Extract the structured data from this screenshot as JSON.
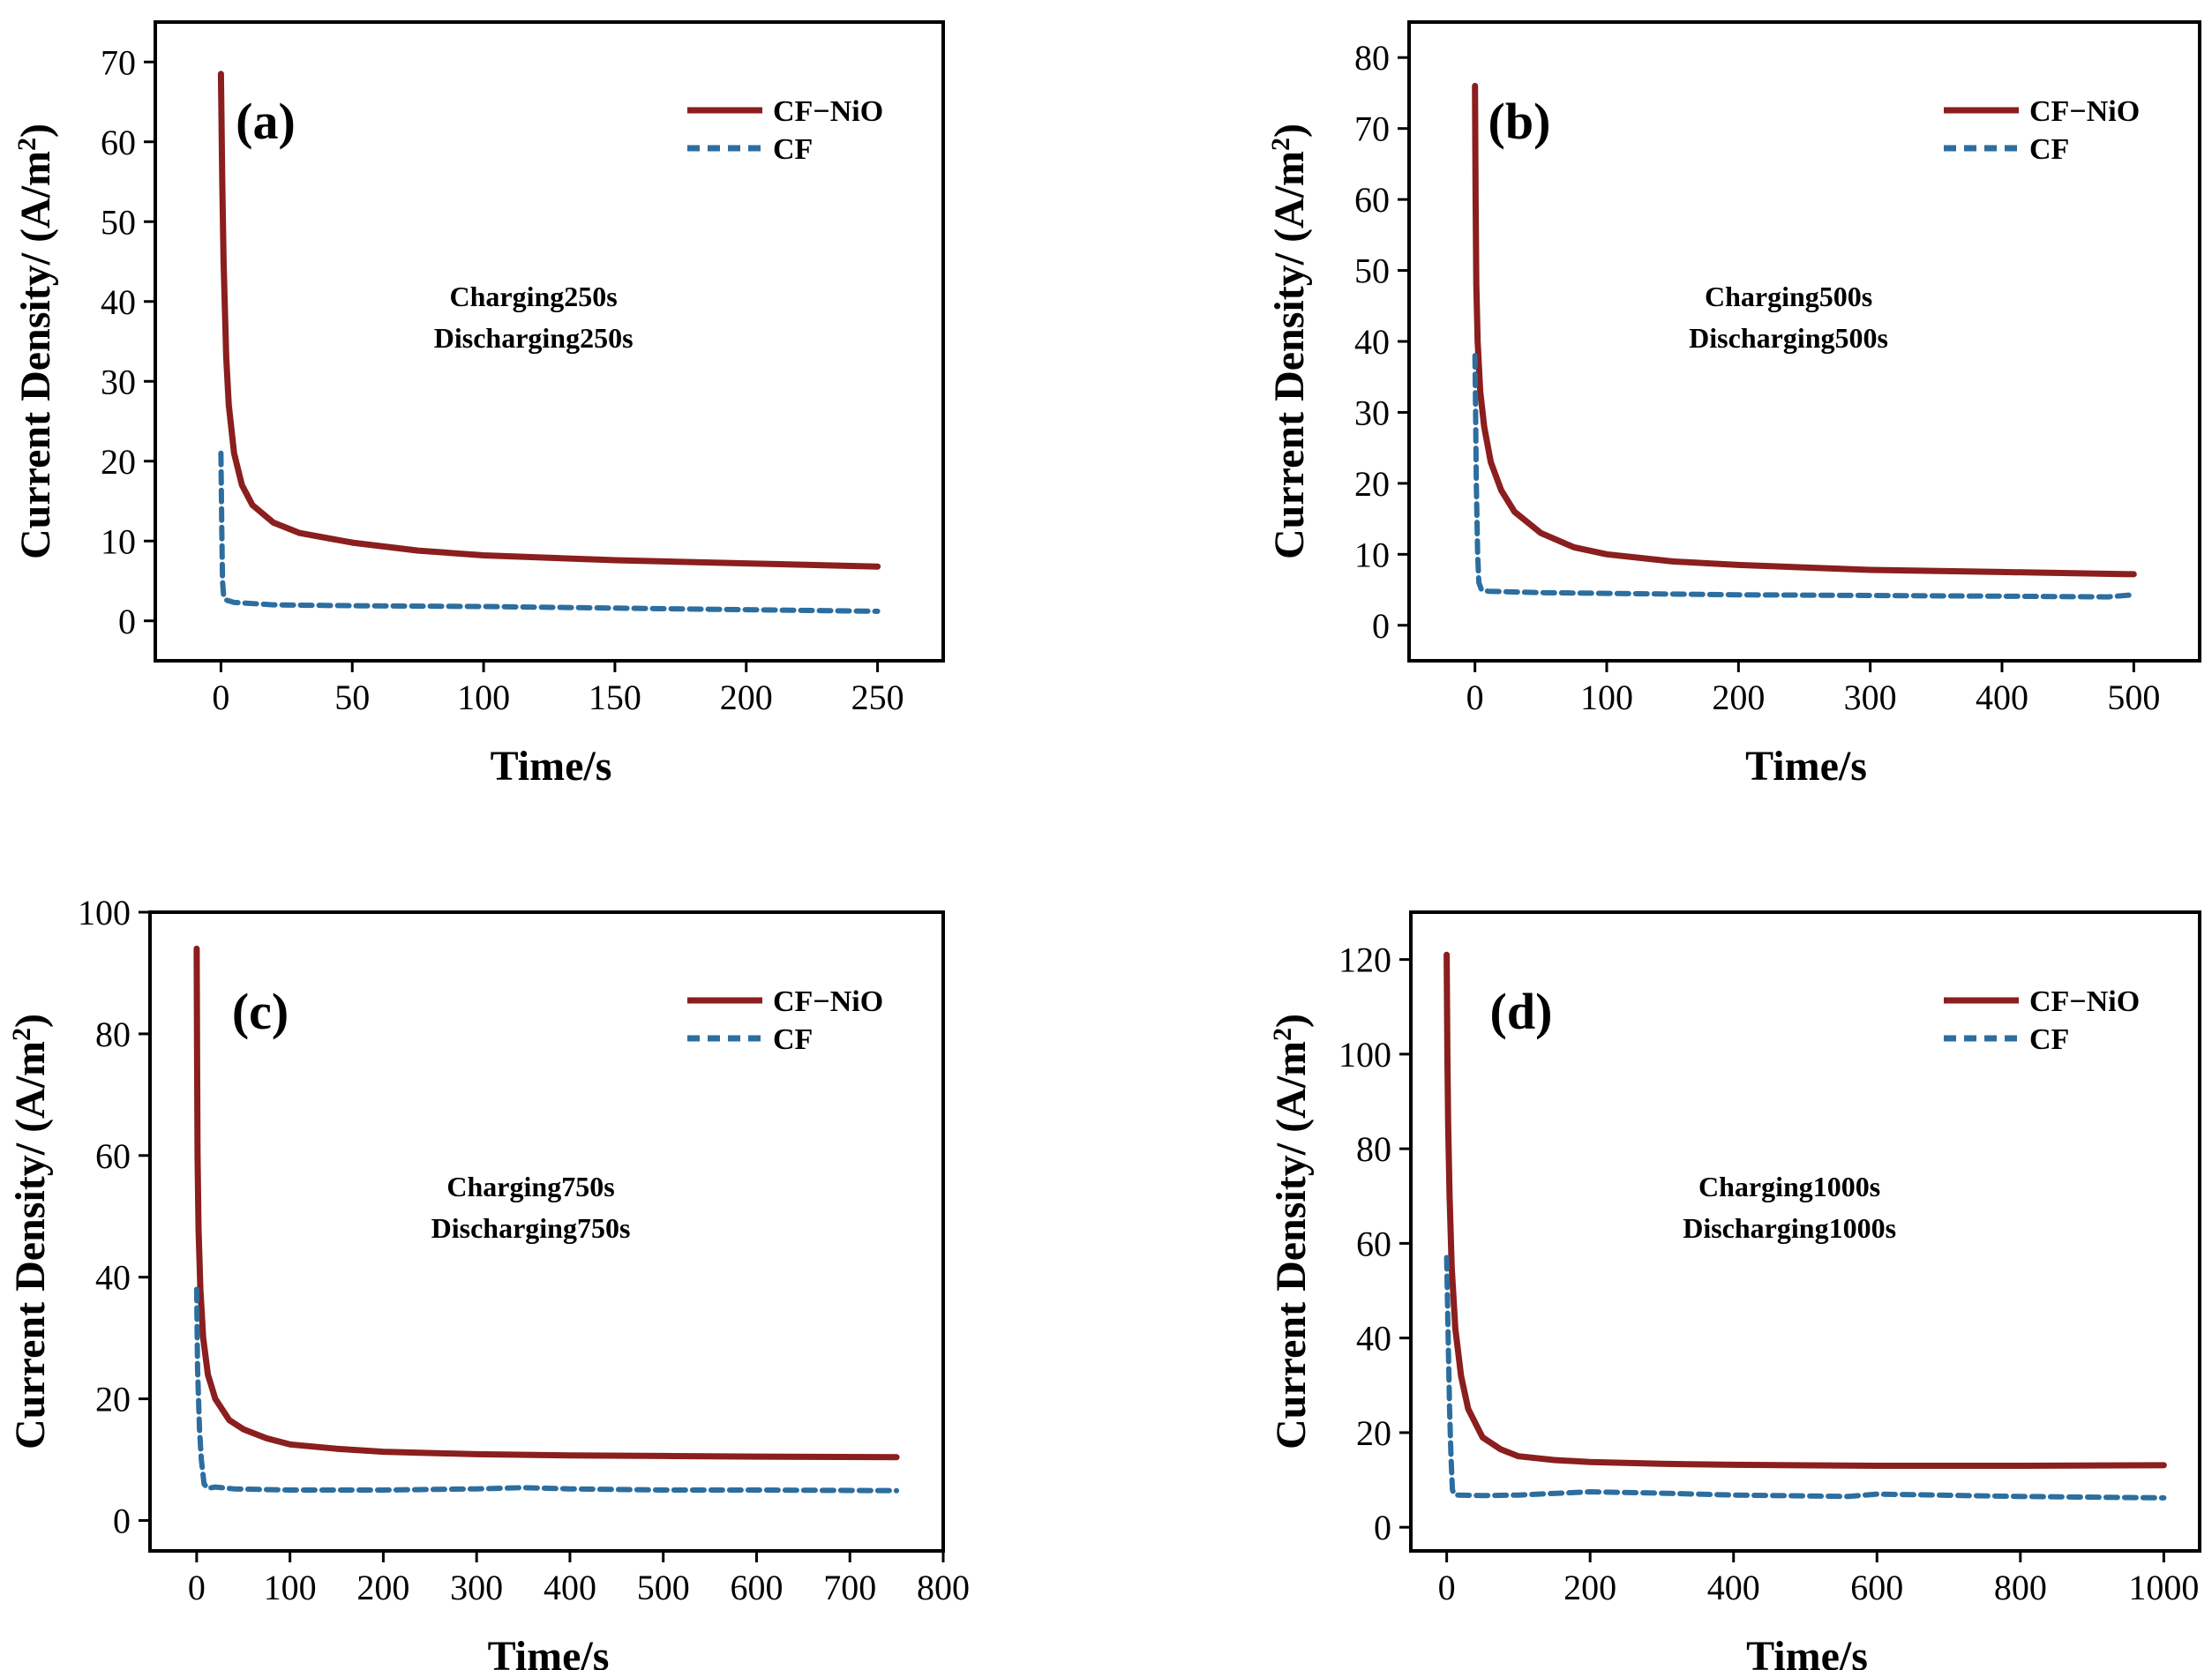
{
  "figure": {
    "colors": {
      "cf_nio": "#8B1E1E",
      "cf": "#2C6E9F",
      "axis": "#000000"
    }
  },
  "chart_data": [
    {
      "type": "line",
      "panel": "(a)",
      "xlabel": "Time/s",
      "ylabel": "Current Density/ (A/m",
      "ylabel_sup": "2",
      "ylabel_end": ")",
      "xlim": [
        -25,
        275
      ],
      "ylim": [
        -5,
        75
      ],
      "xticks": [
        0,
        50,
        100,
        150,
        200,
        250
      ],
      "yticks": [
        0,
        10,
        20,
        30,
        40,
        50,
        60,
        70
      ],
      "annotation": [
        "Charging250s",
        "Discharging250s"
      ],
      "legend_position": "top-right",
      "series": [
        {
          "name": "CF−NiO",
          "style": "solid",
          "x": [
            0,
            0.5,
            1,
            2,
            3,
            5,
            8,
            12,
            20,
            30,
            50,
            75,
            100,
            150,
            200,
            250
          ],
          "y": [
            68.5,
            55,
            45,
            33,
            27,
            21,
            17,
            14.5,
            12.3,
            11,
            9.8,
            8.8,
            8.2,
            7.6,
            7.2,
            6.8
          ]
        },
        {
          "name": "CF",
          "style": "dashed",
          "x": [
            0,
            0.3,
            0.6,
            1,
            2,
            5,
            20,
            50,
            100,
            150,
            200,
            250
          ],
          "y": [
            21,
            12,
            5,
            3.2,
            2.6,
            2.3,
            2.0,
            1.9,
            1.8,
            1.6,
            1.4,
            1.2
          ]
        }
      ]
    },
    {
      "type": "line",
      "panel": "(b)",
      "xlabel": "Time/s",
      "ylabel": "Current Density/ (A/m",
      "ylabel_sup": "2",
      "ylabel_end": ")",
      "xlim": [
        -50,
        550
      ],
      "ylim": [
        -5,
        85
      ],
      "xticks": [
        0,
        100,
        200,
        300,
        400,
        500
      ],
      "yticks": [
        0,
        10,
        20,
        30,
        40,
        50,
        60,
        70,
        80
      ],
      "annotation": [
        "Charging500s",
        "Discharging500s"
      ],
      "legend_position": "top-right",
      "series": [
        {
          "name": "CF−NiO",
          "style": "solid",
          "x": [
            0,
            0.5,
            1,
            2,
            4,
            7,
            12,
            20,
            30,
            50,
            75,
            100,
            150,
            200,
            300,
            400,
            500
          ],
          "y": [
            76,
            60,
            48,
            40,
            33,
            28,
            23,
            19,
            16,
            13,
            11,
            10,
            9,
            8.5,
            7.8,
            7.5,
            7.2
          ]
        },
        {
          "name": "CF",
          "style": "dashed",
          "x": [
            0,
            0.5,
            1,
            2,
            3,
            5,
            10,
            50,
            100,
            200,
            300,
            400,
            480,
            500
          ],
          "y": [
            38,
            30,
            20,
            10,
            6,
            5,
            4.8,
            4.6,
            4.5,
            4.3,
            4.2,
            4.1,
            4.0,
            4.3
          ]
        }
      ]
    },
    {
      "type": "line",
      "panel": "(c)",
      "xlabel": "Time/s",
      "ylabel": "Current Density/ (A/m",
      "ylabel_sup": "2",
      "ylabel_end": ")",
      "xlim": [
        -50,
        800
      ],
      "ylim": [
        -5,
        100
      ],
      "xticks": [
        0,
        100,
        200,
        300,
        400,
        500,
        600,
        700,
        800
      ],
      "yticks": [
        0,
        20,
        40,
        60,
        80,
        100
      ],
      "annotation": [
        "Charging750s",
        "Discharging750s"
      ],
      "legend_position": "top-right",
      "series": [
        {
          "name": "CF−NiO",
          "style": "solid",
          "x": [
            0,
            0.5,
            1,
            2,
            4,
            7,
            12,
            20,
            35,
            50,
            75,
            100,
            150,
            200,
            300,
            400,
            500,
            600,
            750
          ],
          "y": [
            94,
            75,
            60,
            48,
            38,
            30,
            24,
            20,
            16.5,
            15,
            13.5,
            12.5,
            11.8,
            11.3,
            10.9,
            10.7,
            10.6,
            10.5,
            10.4
          ]
        },
        {
          "name": "CF",
          "style": "dashed",
          "x": [
            0,
            1,
            3,
            5,
            8,
            12,
            20,
            40,
            100,
            200,
            300,
            350,
            400,
            500,
            600,
            750
          ],
          "y": [
            38,
            25,
            15,
            10,
            6,
            5.3,
            5.5,
            5.2,
            5.0,
            5.0,
            5.2,
            5.4,
            5.2,
            5.0,
            5.0,
            4.9
          ]
        }
      ]
    },
    {
      "type": "line",
      "panel": "(d)",
      "xlabel": "Time/s",
      "ylabel": "Current Density/ (A/m",
      "ylabel_sup": "2",
      "ylabel_end": ")",
      "xlim": [
        -50,
        1050
      ],
      "ylim": [
        -5,
        130
      ],
      "xticks": [
        0,
        200,
        400,
        600,
        800,
        1000
      ],
      "yticks": [
        0,
        20,
        40,
        60,
        80,
        100,
        120
      ],
      "annotation": [
        "Charging1000s",
        "Discharging1000s"
      ],
      "legend_position": "top-right",
      "series": [
        {
          "name": "CF−NiO",
          "style": "solid",
          "x": [
            0,
            1,
            2,
            4,
            7,
            12,
            20,
            30,
            50,
            75,
            100,
            150,
            200,
            300,
            400,
            600,
            800,
            1000
          ],
          "y": [
            121,
            100,
            85,
            70,
            55,
            42,
            32,
            25,
            19,
            16.5,
            15,
            14.2,
            13.8,
            13.4,
            13.2,
            13.0,
            13.0,
            13.1
          ]
        },
        {
          "name": "CF",
          "style": "dashed",
          "x": [
            0,
            2,
            4,
            6,
            8,
            10,
            15,
            50,
            100,
            200,
            300,
            400,
            560,
            600,
            800,
            1000
          ],
          "y": [
            57,
            40,
            25,
            15,
            8,
            7,
            6.8,
            6.7,
            6.8,
            7.5,
            7.2,
            6.8,
            6.5,
            7.0,
            6.5,
            6.2
          ]
        }
      ]
    }
  ]
}
